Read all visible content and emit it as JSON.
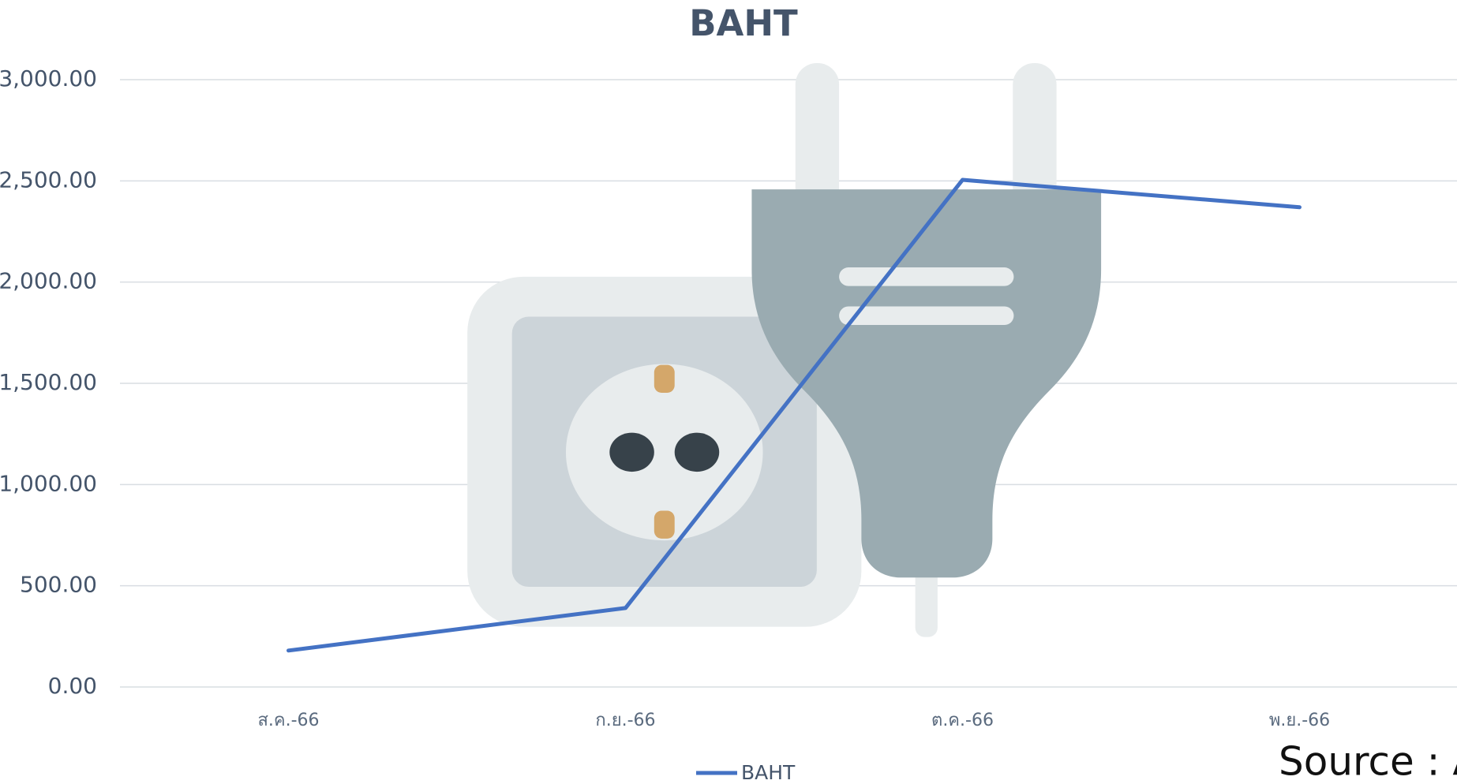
{
  "chart_data": {
    "type": "line",
    "title": "BAHT",
    "categories": [
      "ส.ค.-66",
      "ก.ย.-66",
      "ต.ค.-66",
      "พ.ย.-66"
    ],
    "series": [
      {
        "name": "BAHT",
        "color": "#4472c4",
        "values": [
          180,
          390,
          2505,
          2370
        ]
      }
    ],
    "ylim": [
      0,
      3000
    ],
    "yticks": [
      {
        "value": 0,
        "label": "0.00"
      },
      {
        "value": 500,
        "label": "500.00"
      },
      {
        "value": 1000,
        "label": "1,000.00"
      },
      {
        "value": 1500,
        "label": "1,500.00"
      },
      {
        "value": 2000,
        "label": "2,000.00"
      },
      {
        "value": 2500,
        "label": "2,500.00"
      },
      {
        "value": 3000,
        "label": "3,000.00"
      }
    ],
    "grid": true,
    "legend": "bottom",
    "source": "Source : A"
  }
}
